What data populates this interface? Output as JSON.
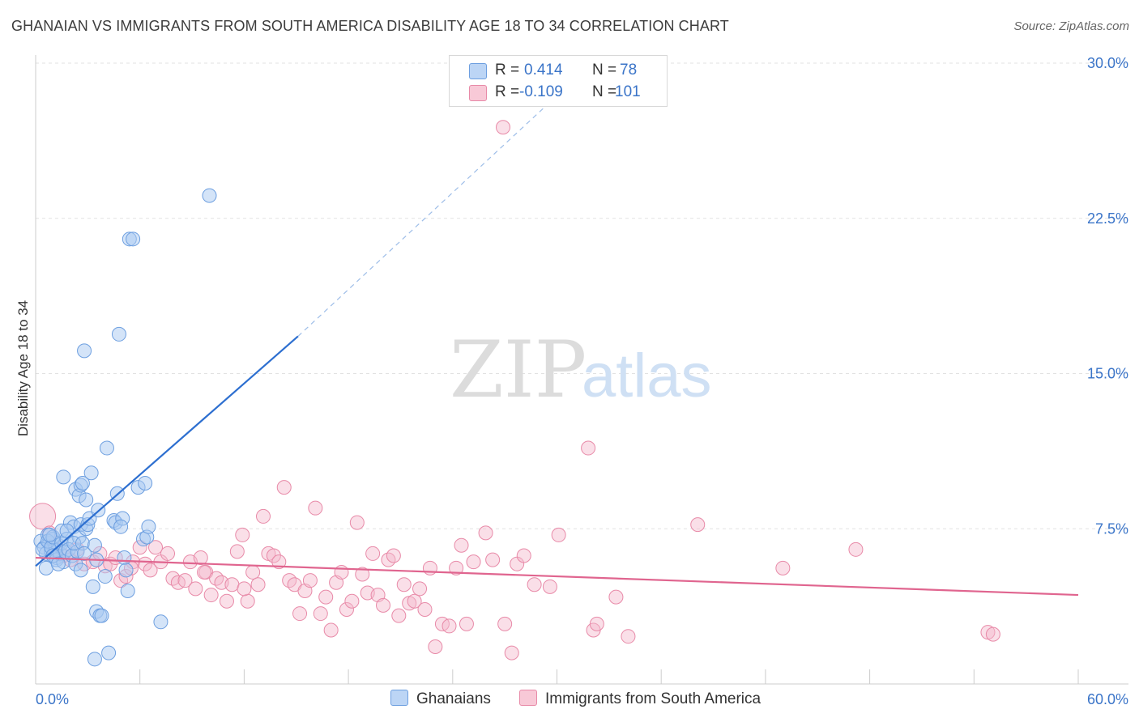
{
  "title": "GHANAIAN VS IMMIGRANTS FROM SOUTH AMERICA DISABILITY AGE 18 TO 34 CORRELATION CHART",
  "source": "Source: ZipAtlas.com",
  "watermark": {
    "zip": "ZIP",
    "atlas": "atlas"
  },
  "legend": {
    "rows": [
      {
        "r_label": "R =",
        "r_value": "0.414",
        "n_label": "N =",
        "n_value": "78"
      },
      {
        "r_label": "R =",
        "r_value": "-0.109",
        "n_label": "N =",
        "n_value": "101"
      }
    ]
  },
  "colors": {
    "blue_fill": "#a9c9f2",
    "blue_stroke": "#6d9fe0",
    "blue_line": "#2d6fd0",
    "pink_fill": "#f5b8cb",
    "pink_stroke": "#e88aa8",
    "pink_line": "#e0658f",
    "tick_label": "#3a74c8",
    "grid": "#e2e2e2"
  },
  "chart_data": {
    "type": "scatter",
    "title": "GHANAIAN VS IMMIGRANTS FROM SOUTH AMERICA DISABILITY AGE 18 TO 34 CORRELATION CHART",
    "xlabel": "",
    "ylabel": "Disability Age 18 to 34",
    "xlim": [
      0,
      60
    ],
    "ylim": [
      0,
      30
    ],
    "x_tick_labels": [
      "0.0%",
      "60.0%"
    ],
    "y_ticks": [
      7.5,
      15.0,
      22.5,
      30.0
    ],
    "y_tick_labels": [
      "7.5%",
      "15.0%",
      "22.5%",
      "30.0%"
    ],
    "grid": true,
    "legend_position": "top-center",
    "series": [
      {
        "name": "Ghanaians",
        "R": 0.414,
        "N": 78,
        "trend": {
          "x": [
            0,
            15.1
          ],
          "y": [
            5.7,
            16.8
          ]
        },
        "trend_extension": {
          "x": [
            15.1,
            31.5
          ],
          "y": [
            16.8,
            29.6
          ]
        },
        "points": [
          [
            0.3,
            6.9
          ],
          [
            0.5,
            6.6
          ],
          [
            0.6,
            6.3
          ],
          [
            0.7,
            7.2
          ],
          [
            0.8,
            6.8
          ],
          [
            0.9,
            6.4
          ],
          [
            1.0,
            7.0
          ],
          [
            1.1,
            6.5
          ],
          [
            1.2,
            6.1
          ],
          [
            1.3,
            6.7
          ],
          [
            0.4,
            6.5
          ],
          [
            0.6,
            5.6
          ],
          [
            0.7,
            6.9
          ],
          [
            0.9,
            6.6
          ],
          [
            1.0,
            7.1
          ],
          [
            1.2,
            6.0
          ],
          [
            1.4,
            6.3
          ],
          [
            1.5,
            6.8
          ],
          [
            1.6,
            5.9
          ],
          [
            1.7,
            6.4
          ],
          [
            1.5,
            7.4
          ],
          [
            1.8,
            7.0
          ],
          [
            1.9,
            6.5
          ],
          [
            2.0,
            7.8
          ],
          [
            2.1,
            6.2
          ],
          [
            2.2,
            7.6
          ],
          [
            2.3,
            5.8
          ],
          [
            2.4,
            6.4
          ],
          [
            2.5,
            7.1
          ],
          [
            2.6,
            5.5
          ],
          [
            2.2,
            6.8
          ],
          [
            2.6,
            7.7
          ],
          [
            2.7,
            6.8
          ],
          [
            2.8,
            6.3
          ],
          [
            2.9,
            7.5
          ],
          [
            3.0,
            7.7
          ],
          [
            1.6,
            10.0
          ],
          [
            2.3,
            9.4
          ],
          [
            2.5,
            9.1
          ],
          [
            2.6,
            9.6
          ],
          [
            2.7,
            9.7
          ],
          [
            2.9,
            8.9
          ],
          [
            3.1,
            8.0
          ],
          [
            3.2,
            10.2
          ],
          [
            3.4,
            6.7
          ],
          [
            3.5,
            6.0
          ],
          [
            3.6,
            8.4
          ],
          [
            2.8,
            16.1
          ],
          [
            3.3,
            4.7
          ],
          [
            3.5,
            3.5
          ],
          [
            3.7,
            3.3
          ],
          [
            3.8,
            3.3
          ],
          [
            3.4,
            1.2
          ],
          [
            4.2,
            1.5
          ],
          [
            4.0,
            5.2
          ],
          [
            4.1,
            11.4
          ],
          [
            4.5,
            7.9
          ],
          [
            4.6,
            7.8
          ],
          [
            4.7,
            9.2
          ],
          [
            4.8,
            16.9
          ],
          [
            5.0,
            8.0
          ],
          [
            5.1,
            6.1
          ],
          [
            5.2,
            5.5
          ],
          [
            5.3,
            4.5
          ],
          [
            5.4,
            21.5
          ],
          [
            5.6,
            21.5
          ],
          [
            5.9,
            9.5
          ],
          [
            6.2,
            7.0
          ],
          [
            6.3,
            9.7
          ],
          [
            6.4,
            7.1
          ],
          [
            6.5,
            7.6
          ],
          [
            7.2,
            3.0
          ],
          [
            10.0,
            23.6
          ],
          [
            1.0,
            6.2
          ],
          [
            0.8,
            7.2
          ],
          [
            1.3,
            5.8
          ],
          [
            4.9,
            7.6
          ],
          [
            1.8,
            7.4
          ]
        ]
      },
      {
        "name": "Immigrants from South America",
        "R": -0.109,
        "N": 101,
        "trend": {
          "x": [
            0,
            60
          ],
          "y": [
            6.1,
            4.3
          ]
        },
        "points": [
          [
            0.4,
            8.1
          ],
          [
            0.8,
            7.3
          ],
          [
            1.2,
            6.5
          ],
          [
            1.6,
            6.2
          ],
          [
            2.0,
            6.0
          ],
          [
            2.4,
            6.5
          ],
          [
            2.8,
            5.8
          ],
          [
            3.3,
            5.9
          ],
          [
            3.7,
            6.3
          ],
          [
            4.0,
            5.7
          ],
          [
            4.3,
            5.8
          ],
          [
            4.6,
            6.1
          ],
          [
            4.9,
            5.0
          ],
          [
            5.2,
            5.2
          ],
          [
            5.6,
            5.9
          ],
          [
            6.0,
            6.6
          ],
          [
            6.3,
            5.8
          ],
          [
            6.6,
            5.5
          ],
          [
            6.9,
            6.6
          ],
          [
            7.2,
            5.9
          ],
          [
            7.6,
            6.3
          ],
          [
            7.9,
            5.1
          ],
          [
            8.2,
            4.9
          ],
          [
            8.6,
            5.0
          ],
          [
            8.9,
            5.9
          ],
          [
            9.2,
            4.6
          ],
          [
            9.5,
            6.1
          ],
          [
            9.8,
            5.4
          ],
          [
            10.1,
            4.3
          ],
          [
            10.4,
            5.1
          ],
          [
            10.7,
            4.9
          ],
          [
            11.0,
            4.0
          ],
          [
            11.3,
            4.8
          ],
          [
            11.6,
            6.4
          ],
          [
            11.9,
            7.2
          ],
          [
            12.2,
            4.0
          ],
          [
            12.5,
            5.4
          ],
          [
            12.8,
            4.8
          ],
          [
            13.1,
            8.1
          ],
          [
            13.4,
            6.3
          ],
          [
            13.7,
            6.2
          ],
          [
            14.0,
            5.9
          ],
          [
            14.3,
            9.5
          ],
          [
            14.6,
            5.0
          ],
          [
            14.9,
            4.8
          ],
          [
            15.2,
            3.4
          ],
          [
            15.5,
            4.5
          ],
          [
            15.8,
            5.0
          ],
          [
            16.1,
            8.5
          ],
          [
            16.4,
            3.4
          ],
          [
            16.7,
            4.2
          ],
          [
            17.0,
            2.6
          ],
          [
            17.3,
            4.9
          ],
          [
            17.6,
            5.4
          ],
          [
            17.9,
            3.6
          ],
          [
            18.2,
            4.0
          ],
          [
            18.5,
            7.8
          ],
          [
            18.8,
            5.3
          ],
          [
            19.1,
            4.4
          ],
          [
            19.4,
            6.3
          ],
          [
            19.7,
            4.3
          ],
          [
            20.0,
            3.8
          ],
          [
            20.3,
            6.0
          ],
          [
            20.6,
            6.2
          ],
          [
            20.9,
            3.3
          ],
          [
            21.2,
            4.8
          ],
          [
            21.5,
            3.9
          ],
          [
            21.8,
            4.0
          ],
          [
            22.1,
            4.6
          ],
          [
            22.4,
            3.6
          ],
          [
            22.7,
            5.6
          ],
          [
            23.0,
            1.8
          ],
          [
            23.4,
            2.9
          ],
          [
            23.8,
            2.8
          ],
          [
            24.2,
            5.6
          ],
          [
            24.5,
            6.7
          ],
          [
            24.8,
            2.9
          ],
          [
            25.2,
            5.9
          ],
          [
            25.9,
            7.3
          ],
          [
            26.3,
            6.0
          ],
          [
            27.0,
            2.9
          ],
          [
            27.4,
            1.5
          ],
          [
            27.7,
            5.8
          ],
          [
            28.1,
            6.2
          ],
          [
            28.7,
            4.8
          ],
          [
            29.6,
            4.7
          ],
          [
            30.1,
            7.2
          ],
          [
            31.8,
            11.4
          ],
          [
            32.1,
            2.6
          ],
          [
            32.3,
            2.9
          ],
          [
            33.4,
            4.2
          ],
          [
            34.1,
            2.3
          ],
          [
            38.1,
            7.7
          ],
          [
            43.0,
            5.6
          ],
          [
            47.2,
            6.5
          ],
          [
            54.8,
            2.5
          ],
          [
            55.1,
            2.4
          ],
          [
            26.9,
            26.9
          ],
          [
            9.7,
            5.4
          ],
          [
            12.0,
            4.6
          ],
          [
            5.5,
            5.6
          ]
        ]
      }
    ]
  },
  "bottom_legend": [
    "Ghanaians",
    "Immigrants from South America"
  ]
}
